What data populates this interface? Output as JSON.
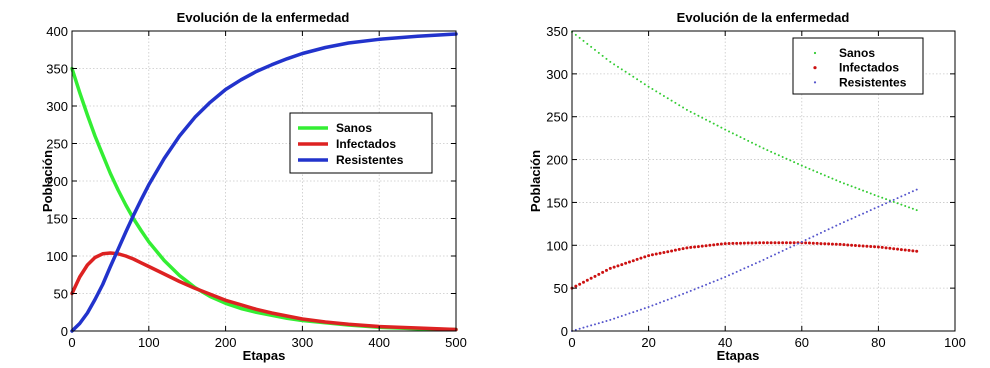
{
  "chart_data": [
    {
      "type": "line",
      "title": "Evolución de la enfermedad",
      "xlabel": "Etapas",
      "ylabel": "Población",
      "xlim": [
        0,
        500
      ],
      "ylim": [
        0,
        400
      ],
      "xticks": [
        0,
        100,
        200,
        300,
        400,
        500
      ],
      "yticks": [
        0,
        50,
        100,
        150,
        200,
        250,
        300,
        350,
        400
      ],
      "grid": true,
      "legend_position": "right",
      "series": [
        {
          "name": "Sanos",
          "color": "#33ee33",
          "x": [
            0,
            10,
            20,
            30,
            40,
            50,
            60,
            70,
            80,
            90,
            100,
            120,
            140,
            160,
            180,
            200,
            220,
            240,
            260,
            280,
            300,
            330,
            360,
            400,
            450,
            500
          ],
          "y": [
            350,
            318,
            288,
            260,
            235,
            210,
            188,
            168,
            150,
            134,
            119,
            94,
            74,
            58,
            46,
            37,
            30,
            25,
            21,
            17,
            14,
            11,
            8,
            5,
            3,
            2
          ]
        },
        {
          "name": "Infectados",
          "color": "#dd2222",
          "x": [
            0,
            10,
            20,
            30,
            40,
            50,
            60,
            70,
            80,
            90,
            100,
            120,
            140,
            160,
            180,
            200,
            220,
            240,
            260,
            280,
            300,
            330,
            360,
            400,
            450,
            500
          ],
          "y": [
            50,
            72,
            88,
            98,
            103,
            104,
            103,
            100,
            96,
            91,
            86,
            76,
            66,
            57,
            49,
            41,
            35,
            29,
            24,
            20,
            16,
            12,
            9,
            6,
            4,
            2
          ]
        },
        {
          "name": "Resistentes",
          "color": "#2233cc",
          "x": [
            0,
            10,
            20,
            30,
            40,
            50,
            60,
            70,
            80,
            90,
            100,
            120,
            140,
            160,
            180,
            200,
            220,
            240,
            260,
            280,
            300,
            330,
            360,
            400,
            450,
            500
          ],
          "y": [
            0,
            10,
            24,
            42,
            62,
            86,
            109,
            132,
            154,
            175,
            195,
            230,
            260,
            285,
            305,
            322,
            335,
            346,
            355,
            363,
            370,
            378,
            384,
            389,
            393,
            396
          ]
        }
      ]
    },
    {
      "type": "scatter",
      "title": "Evolución de la enfermedad",
      "xlabel": "Etapas",
      "ylabel": "Población",
      "xlim": [
        0,
        100
      ],
      "ylim": [
        0,
        350
      ],
      "xticks": [
        0,
        20,
        40,
        60,
        80,
        100
      ],
      "yticks": [
        0,
        50,
        100,
        150,
        200,
        250,
        300,
        350
      ],
      "grid": true,
      "legend_position": "top-right",
      "series": [
        {
          "name": "Sanos",
          "color": "#33cc33",
          "x": [
            0,
            10,
            20,
            30,
            40,
            50,
            60,
            70,
            80,
            90
          ],
          "y": [
            349,
            314,
            285,
            258,
            235,
            213,
            193,
            174,
            157,
            141
          ]
        },
        {
          "name": "Infectados",
          "color": "#cc1111",
          "x": [
            0,
            10,
            20,
            30,
            40,
            50,
            60,
            70,
            80,
            90
          ],
          "y": [
            50,
            73,
            88,
            97,
            102,
            103,
            103,
            101,
            98,
            93
          ]
        },
        {
          "name": "Resistentes",
          "color": "#5555cc",
          "x": [
            0,
            10,
            20,
            30,
            40,
            50,
            60,
            70,
            80,
            90
          ],
          "y": [
            0,
            13,
            28,
            45,
            63,
            83,
            104,
            125,
            145,
            165
          ]
        }
      ]
    }
  ]
}
